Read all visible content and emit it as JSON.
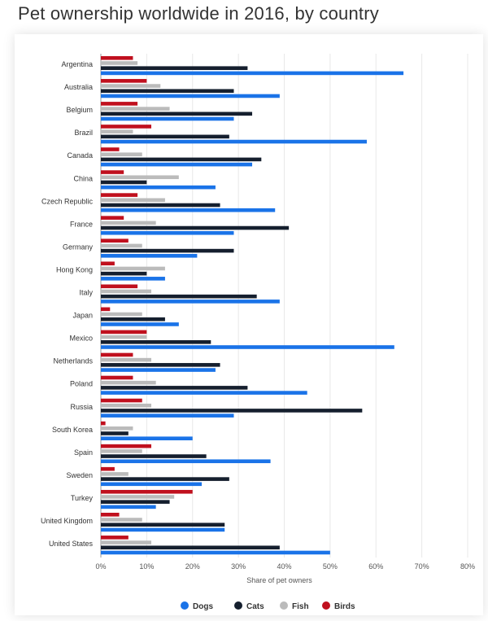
{
  "title": "Pet ownership worldwide in 2016, by country",
  "chart_data": {
    "type": "bar",
    "orientation": "horizontal",
    "title": "Pet ownership worldwide in 2016, by country",
    "xlabel": "Share of pet owners",
    "ylabel": "",
    "xlim": [
      0,
      80
    ],
    "xticks": [
      "0%",
      "10%",
      "20%",
      "30%",
      "40%",
      "50%",
      "60%",
      "70%",
      "80%"
    ],
    "grid": true,
    "legend": "bottom",
    "categories": [
      "Argentina",
      "Australia",
      "Belgium",
      "Brazil",
      "Canada",
      "China",
      "Czech Republic",
      "France",
      "Germany",
      "Hong Kong",
      "Italy",
      "Japan",
      "Mexico",
      "Netherlands",
      "Poland",
      "Russia",
      "South Korea",
      "Spain",
      "Sweden",
      "Turkey",
      "United Kingdom",
      "United States"
    ],
    "series": [
      {
        "name": "Birds",
        "color": "#c0101e",
        "values": [
          7,
          10,
          8,
          11,
          4,
          5,
          8,
          5,
          6,
          3,
          8,
          2,
          10,
          7,
          7,
          9,
          1,
          11,
          3,
          20,
          4,
          6
        ]
      },
      {
        "name": "Fish",
        "color": "#bbbbbb",
        "values": [
          8,
          13,
          15,
          7,
          9,
          17,
          14,
          12,
          9,
          14,
          11,
          9,
          10,
          11,
          12,
          11,
          7,
          9,
          6,
          16,
          9,
          11
        ]
      },
      {
        "name": "Cats",
        "color": "#151f2e",
        "values": [
          32,
          29,
          33,
          28,
          35,
          10,
          26,
          41,
          29,
          10,
          34,
          14,
          24,
          26,
          32,
          57,
          6,
          23,
          28,
          15,
          27,
          39
        ]
      },
      {
        "name": "Dogs",
        "color": "#1a73e8",
        "values": [
          66,
          39,
          29,
          58,
          33,
          25,
          38,
          29,
          21,
          14,
          39,
          17,
          64,
          25,
          45,
          29,
          20,
          37,
          22,
          12,
          27,
          50
        ]
      }
    ]
  },
  "legend": [
    {
      "name": "Dogs",
      "color": "#1a73e8"
    },
    {
      "name": "Cats",
      "color": "#151f2e"
    },
    {
      "name": "Fish",
      "color": "#bbbbbb"
    },
    {
      "name": "Birds",
      "color": "#c0101e"
    }
  ]
}
